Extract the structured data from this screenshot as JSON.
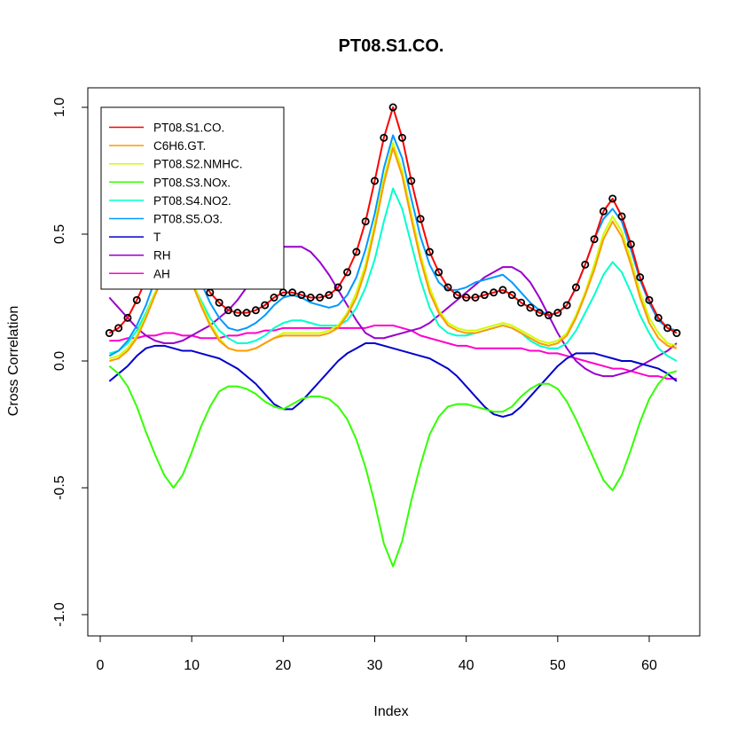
{
  "chart_data": {
    "type": "line",
    "title": "PT08.S1.CO.",
    "xlabel": "Index",
    "ylabel": "Cross Correlation",
    "xlim": [
      1,
      63
    ],
    "ylim": [
      -1.0,
      1.0
    ],
    "x_ticks": [
      0,
      10,
      20,
      30,
      40,
      50,
      60
    ],
    "y_ticks": [
      -1.0,
      -0.5,
      0.0,
      0.5,
      1.0
    ],
    "y_tick_labels": [
      "-1.0",
      "-0.5",
      "0.0",
      "0.5",
      "1.0"
    ],
    "grid": false,
    "legend_position": "top-left",
    "x": [
      1,
      2,
      3,
      4,
      5,
      6,
      7,
      8,
      9,
      10,
      11,
      12,
      13,
      14,
      15,
      16,
      17,
      18,
      19,
      20,
      21,
      22,
      23,
      24,
      25,
      26,
      27,
      28,
      29,
      30,
      31,
      32,
      33,
      34,
      35,
      36,
      37,
      38,
      39,
      40,
      41,
      42,
      43,
      44,
      45,
      46,
      47,
      48,
      49,
      50,
      51,
      52,
      53,
      54,
      55,
      56,
      57,
      58,
      59,
      60,
      61,
      62,
      63
    ],
    "series": [
      {
        "name": "PT08.S1.CO.",
        "color": "#ff0000",
        "points": true,
        "values": [
          0.11,
          0.13,
          0.17,
          0.24,
          0.32,
          0.4,
          0.48,
          0.52,
          0.5,
          0.43,
          0.35,
          0.27,
          0.23,
          0.2,
          0.19,
          0.19,
          0.2,
          0.22,
          0.25,
          0.27,
          0.27,
          0.26,
          0.25,
          0.25,
          0.26,
          0.29,
          0.35,
          0.43,
          0.55,
          0.71,
          0.88,
          1.0,
          0.88,
          0.71,
          0.56,
          0.43,
          0.35,
          0.29,
          0.26,
          0.25,
          0.25,
          0.26,
          0.27,
          0.28,
          0.26,
          0.23,
          0.21,
          0.19,
          0.18,
          0.19,
          0.22,
          0.29,
          0.38,
          0.48,
          0.59,
          0.64,
          0.57,
          0.46,
          0.33,
          0.24,
          0.17,
          0.13,
          0.11
        ]
      },
      {
        "name": "C6H6.GT.",
        "color": "#ff9900",
        "values": [
          0.0,
          0.01,
          0.04,
          0.09,
          0.17,
          0.26,
          0.34,
          0.38,
          0.37,
          0.31,
          0.22,
          0.14,
          0.08,
          0.05,
          0.04,
          0.04,
          0.05,
          0.07,
          0.09,
          0.1,
          0.1,
          0.1,
          0.1,
          0.1,
          0.11,
          0.13,
          0.18,
          0.25,
          0.36,
          0.52,
          0.7,
          0.84,
          0.73,
          0.56,
          0.4,
          0.27,
          0.19,
          0.14,
          0.12,
          0.11,
          0.11,
          0.12,
          0.13,
          0.14,
          0.13,
          0.11,
          0.09,
          0.07,
          0.06,
          0.07,
          0.1,
          0.17,
          0.26,
          0.36,
          0.48,
          0.55,
          0.49,
          0.38,
          0.25,
          0.15,
          0.09,
          0.06,
          0.05
        ]
      },
      {
        "name": "PT08.S2.NMHC.",
        "color": "#ccff00",
        "values": [
          0.01,
          0.02,
          0.05,
          0.1,
          0.18,
          0.27,
          0.35,
          0.39,
          0.38,
          0.32,
          0.23,
          0.15,
          0.09,
          0.05,
          0.04,
          0.04,
          0.05,
          0.07,
          0.09,
          0.11,
          0.11,
          0.11,
          0.11,
          0.11,
          0.12,
          0.14,
          0.19,
          0.27,
          0.38,
          0.54,
          0.72,
          0.86,
          0.75,
          0.58,
          0.42,
          0.29,
          0.2,
          0.15,
          0.13,
          0.12,
          0.12,
          0.13,
          0.14,
          0.15,
          0.14,
          0.12,
          0.1,
          0.08,
          0.07,
          0.08,
          0.11,
          0.18,
          0.27,
          0.38,
          0.5,
          0.57,
          0.51,
          0.4,
          0.27,
          0.17,
          0.11,
          0.07,
          0.06
        ]
      },
      {
        "name": "PT08.S3.NOx.",
        "color": "#33ff00",
        "values": [
          -0.02,
          -0.05,
          -0.1,
          -0.18,
          -0.28,
          -0.37,
          -0.45,
          -0.5,
          -0.45,
          -0.36,
          -0.26,
          -0.18,
          -0.12,
          -0.1,
          -0.1,
          -0.11,
          -0.13,
          -0.16,
          -0.18,
          -0.19,
          -0.17,
          -0.15,
          -0.14,
          -0.14,
          -0.15,
          -0.18,
          -0.23,
          -0.31,
          -0.42,
          -0.56,
          -0.72,
          -0.81,
          -0.71,
          -0.55,
          -0.41,
          -0.29,
          -0.22,
          -0.18,
          -0.17,
          -0.17,
          -0.18,
          -0.19,
          -0.2,
          -0.2,
          -0.18,
          -0.14,
          -0.11,
          -0.09,
          -0.09,
          -0.11,
          -0.16,
          -0.23,
          -0.31,
          -0.39,
          -0.47,
          -0.51,
          -0.45,
          -0.35,
          -0.24,
          -0.15,
          -0.09,
          -0.05,
          -0.04
        ]
      },
      {
        "name": "PT08.S4.NO2.",
        "color": "#00ffcc",
        "values": [
          0.03,
          0.04,
          0.07,
          0.12,
          0.19,
          0.27,
          0.34,
          0.37,
          0.36,
          0.31,
          0.24,
          0.17,
          0.12,
          0.09,
          0.07,
          0.07,
          0.08,
          0.1,
          0.13,
          0.15,
          0.16,
          0.16,
          0.15,
          0.14,
          0.14,
          0.14,
          0.16,
          0.21,
          0.29,
          0.4,
          0.55,
          0.68,
          0.6,
          0.46,
          0.32,
          0.21,
          0.14,
          0.11,
          0.1,
          0.1,
          0.11,
          0.12,
          0.13,
          0.14,
          0.13,
          0.11,
          0.08,
          0.06,
          0.05,
          0.05,
          0.07,
          0.12,
          0.19,
          0.26,
          0.34,
          0.39,
          0.35,
          0.27,
          0.18,
          0.11,
          0.05,
          0.02,
          0.0
        ]
      },
      {
        "name": "PT08.S5.O3.",
        "color": "#0099ff",
        "values": [
          0.02,
          0.04,
          0.08,
          0.14,
          0.22,
          0.32,
          0.41,
          0.46,
          0.45,
          0.39,
          0.31,
          0.23,
          0.17,
          0.13,
          0.12,
          0.13,
          0.15,
          0.18,
          0.22,
          0.25,
          0.26,
          0.25,
          0.23,
          0.22,
          0.21,
          0.22,
          0.26,
          0.33,
          0.44,
          0.58,
          0.76,
          0.89,
          0.8,
          0.64,
          0.49,
          0.38,
          0.31,
          0.28,
          0.28,
          0.29,
          0.31,
          0.32,
          0.33,
          0.34,
          0.31,
          0.27,
          0.23,
          0.2,
          0.18,
          0.19,
          0.22,
          0.29,
          0.38,
          0.48,
          0.56,
          0.6,
          0.55,
          0.44,
          0.32,
          0.23,
          0.16,
          0.13,
          0.12
        ]
      },
      {
        "name": "T",
        "color": "#0000cc",
        "values": [
          -0.08,
          -0.05,
          -0.02,
          0.02,
          0.05,
          0.06,
          0.06,
          0.05,
          0.04,
          0.04,
          0.03,
          0.02,
          0.01,
          -0.01,
          -0.03,
          -0.06,
          -0.09,
          -0.13,
          -0.17,
          -0.19,
          -0.19,
          -0.16,
          -0.12,
          -0.08,
          -0.04,
          0.0,
          0.03,
          0.05,
          0.07,
          0.07,
          0.06,
          0.05,
          0.04,
          0.03,
          0.02,
          0.01,
          -0.01,
          -0.03,
          -0.06,
          -0.1,
          -0.14,
          -0.18,
          -0.21,
          -0.22,
          -0.21,
          -0.18,
          -0.14,
          -0.1,
          -0.06,
          -0.02,
          0.01,
          0.03,
          0.03,
          0.03,
          0.02,
          0.01,
          0.0,
          0.0,
          -0.01,
          -0.02,
          -0.03,
          -0.05,
          -0.08
        ]
      },
      {
        "name": "RH",
        "color": "#9900cc",
        "values": [
          0.25,
          0.21,
          0.17,
          0.13,
          0.1,
          0.08,
          0.07,
          0.07,
          0.08,
          0.1,
          0.12,
          0.14,
          0.17,
          0.2,
          0.24,
          0.29,
          0.34,
          0.39,
          0.43,
          0.45,
          0.45,
          0.45,
          0.43,
          0.39,
          0.34,
          0.28,
          0.22,
          0.16,
          0.11,
          0.09,
          0.09,
          0.1,
          0.11,
          0.12,
          0.13,
          0.15,
          0.18,
          0.21,
          0.24,
          0.27,
          0.3,
          0.33,
          0.35,
          0.37,
          0.37,
          0.35,
          0.31,
          0.25,
          0.18,
          0.11,
          0.05,
          0.0,
          -0.03,
          -0.05,
          -0.06,
          -0.06,
          -0.05,
          -0.04,
          -0.02,
          0.0,
          0.02,
          0.04,
          0.07
        ]
      },
      {
        "name": "AH",
        "color": "#ff00cc",
        "values": [
          0.08,
          0.08,
          0.09,
          0.09,
          0.1,
          0.1,
          0.11,
          0.11,
          0.1,
          0.1,
          0.09,
          0.09,
          0.09,
          0.1,
          0.1,
          0.11,
          0.11,
          0.12,
          0.12,
          0.13,
          0.13,
          0.13,
          0.13,
          0.13,
          0.13,
          0.13,
          0.13,
          0.13,
          0.13,
          0.14,
          0.14,
          0.14,
          0.13,
          0.12,
          0.1,
          0.09,
          0.08,
          0.07,
          0.06,
          0.06,
          0.05,
          0.05,
          0.05,
          0.05,
          0.05,
          0.05,
          0.04,
          0.04,
          0.03,
          0.03,
          0.02,
          0.01,
          0.0,
          -0.01,
          -0.02,
          -0.03,
          -0.03,
          -0.04,
          -0.05,
          -0.06,
          -0.06,
          -0.07,
          -0.07
        ]
      }
    ]
  }
}
